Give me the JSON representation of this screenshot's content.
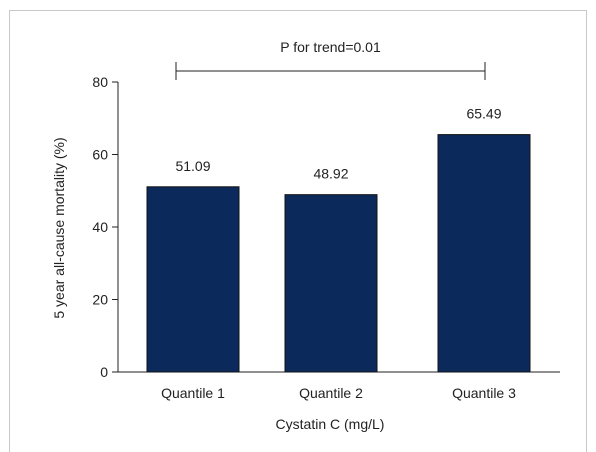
{
  "chart_data": {
    "type": "bar",
    "categories": [
      "Quantile 1",
      "Quantile 2",
      "Quantile 3"
    ],
    "values": [
      51.09,
      48.92,
      65.49
    ],
    "value_labels": [
      "51.09",
      "48.92",
      "65.49"
    ],
    "xlabel": "Cystatin C (mg/L)",
    "ylabel": "5 year all-cause mortality (%)",
    "ylim": [
      0,
      80
    ],
    "yticks": [
      "0",
      "20",
      "40",
      "60",
      "80"
    ],
    "grid": false,
    "bar_color": "#0b2a5b",
    "annotation": {
      "text": "P for trend=0.01",
      "from_category": "Quantile 1",
      "to_category": "Quantile 3"
    }
  }
}
